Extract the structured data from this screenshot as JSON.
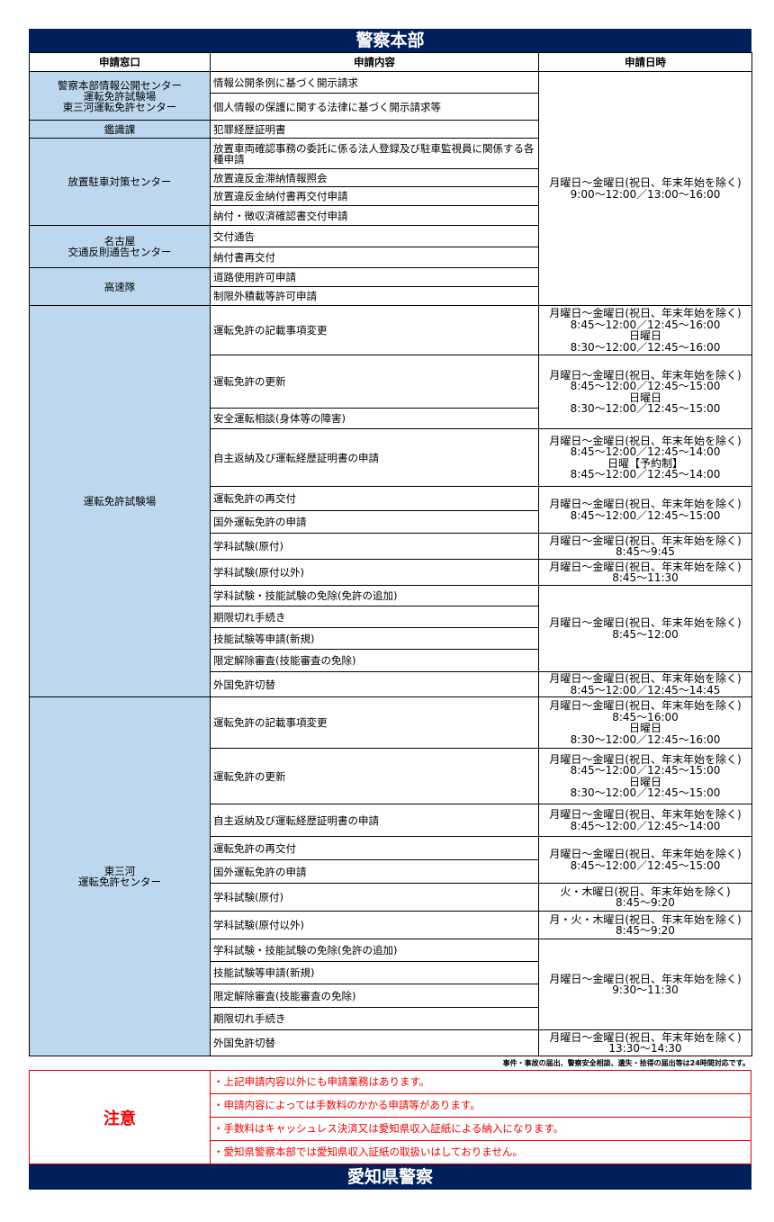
{
  "title": "警察本部",
  "headers": [
    "申請窓口",
    "申請内容",
    "申請日時"
  ],
  "offices": [
    {
      "name": "警察本部情報公開センター\n運転免許試験場\n東三河運転免許センター",
      "rows": 2
    },
    {
      "name": "鑑識課",
      "rows": 1
    },
    {
      "name": "放置駐車対策センター",
      "rows": 4
    },
    {
      "name": "名古屋\n交通反則通告センター",
      "rows": 2
    },
    {
      "name": "高速隊",
      "rows": 2
    },
    {
      "name": "運転免許試験場",
      "rows": 13
    },
    {
      "name": "東三河\n運転免許センター",
      "rows": 12
    }
  ],
  "items": [
    "情報公開条例に基づく開示請求",
    "個人情報の保護に関する法律に基づく開示請求等",
    "犯罪経歴証明書",
    "放置車両確認事務の委託に係る法人登録及び駐車監視員に関係する各種申請",
    "放置違反金滞納情報照会",
    "放置違反金納付書再交付申請",
    "納付・徴収済確認書交付申請",
    "交付通告",
    "納付書再交付",
    "道路使用許可申請",
    "制限外積載等許可申請",
    "運転免許の記載事項変更",
    "運転免許の更新",
    "安全運転相談(身体等の障害)",
    "自主返納及び運転経歴証明書の申請",
    "運転免許の再交付",
    "国外運転免許の申請",
    "学科試験(原付)",
    "学科試験(原付以外)",
    "学科試験・技能試験の免除(免許の追加)",
    "期限切れ手続き",
    "技能試験等申請(新規)",
    "限定解除審査(技能審査の免除)",
    "外国免許切替",
    "運転免許の記載事項変更",
    "運転免許の更新",
    "自主返納及び運転経歴証明書の申請",
    "運転免許の再交付",
    "国外運転免許の申請",
    "学科試験(原付)",
    "学科試験(原付以外)",
    "学科試験・技能試験の免除(免許の追加)",
    "技能試験等申請(新規)",
    "限定解除審査(技能審査の免除)",
    "期限切れ手続き",
    "外国免許切替"
  ],
  "times": [
    {
      "text": "月曜日～金曜日(祝日、年末年始を除く)\n9:00～12:00／13:00～16:00",
      "rows": 11
    },
    {
      "text": "月曜日～金曜日(祝日、年末年始を除く)\n8:45～12:00／12:45～16:00\n日曜日\n8:30～12:00／12:45～16:00",
      "rows": 1
    },
    {
      "text": "月曜日～金曜日(祝日、年末年始を除く)\n8:45～12:00／12:45～15:00\n日曜日\n8:30～12:00／12:45～15:00",
      "rows": 2
    },
    {
      "text": "月曜日～金曜日(祝日、年末年始を除く)\n8:45～12:00／12:45～14:00\n日曜【予約制】\n8:45～12:00／12:45～14:00",
      "rows": 1
    },
    {
      "text": "月曜日～金曜日(祝日、年末年始を除く)\n8:45～12:00／12:45～15:00",
      "rows": 2
    },
    {
      "text": "月曜日～金曜日(祝日、年末年始を除く)\n8:45～9:45",
      "rows": 1
    },
    {
      "text": "月曜日～金曜日(祝日、年末年始を除く)\n8:45～11:30",
      "rows": 1
    },
    {
      "text": "月曜日～金曜日(祝日、年末年始を除く)\n8:45～12:00",
      "rows": 4
    },
    {
      "text": "月曜日～金曜日(祝日、年末年始を除く)\n8:45～12:00／12:45～14:45",
      "rows": 1
    },
    {
      "text": "月曜日～金曜日(祝日、年末年始を除く)\n8:45～16:00\n日曜日\n8:30～12:00／12:45～16:00",
      "rows": 1
    },
    {
      "text": "月曜日～金曜日(祝日、年末年始を除く)\n8:45～12:00／12:45～15:00\n日曜日\n8:30～12:00／12:45～15:00",
      "rows": 1
    },
    {
      "text": "月曜日～金曜日(祝日、年末年始を除く)\n8:45～12:00／12:45～14:00",
      "rows": 1
    },
    {
      "text": "月曜日～金曜日(祝日、年末年始を除く)\n8:45～12:00／12:45～15:00",
      "rows": 2
    },
    {
      "text": "火・木曜日(祝日、年末年始を除く)\n8:45～9:20",
      "rows": 1
    },
    {
      "text": "月・火・木曜日(祝日、年末年始を除く)\n8:45～9:20",
      "rows": 1
    },
    {
      "text": "月曜日～金曜日(祝日、年末年始を除く)\n9:30～11:30",
      "rows": 4
    },
    {
      "text": "月曜日～金曜日(祝日、年末年始を除く)\n13:30～14:30",
      "rows": 1
    }
  ],
  "note": "事件・事故の届出、警察安全相談、遺失・拾得の届出等は24時間対応です。",
  "notice": {
    "label": "注意",
    "items": [
      "・上記申請内容以外にも申請業務はあります。",
      "・申請内容によっては手数料のかかる申請等があります。",
      "・手数料はキャッシュレス決済又は愛知県収入証紙による納入になります。",
      "・愛知県警察本部では愛知県収入証紙の取扱いはしておりません。"
    ]
  },
  "footer": "愛知県警察",
  "colors": {
    "navy": "#00205b",
    "office_bg": "#bdd7ee",
    "notice_red": "#e00000"
  }
}
